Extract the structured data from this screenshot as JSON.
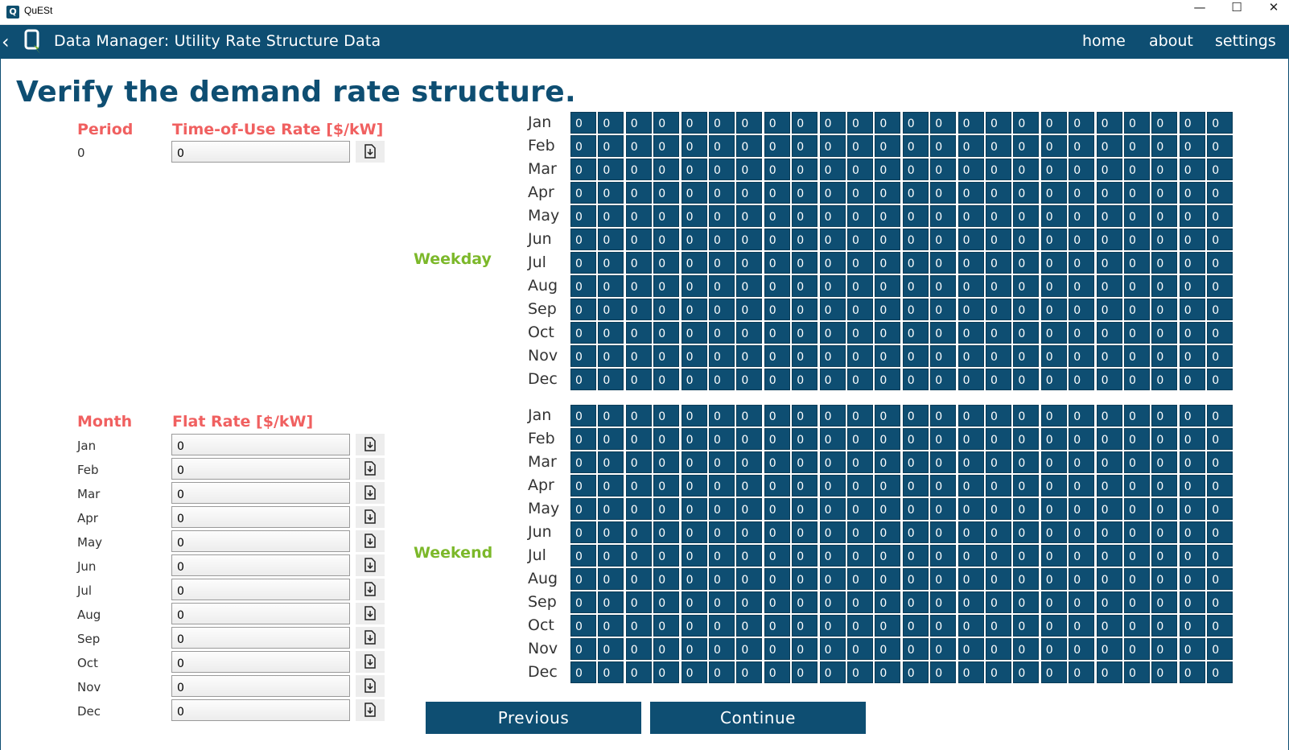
{
  "window": {
    "title": "QuESt",
    "icon_letter": "Q",
    "controls": [
      "minimize-icon",
      "maximize-icon",
      "close-icon"
    ]
  },
  "header": {
    "title": "Data Manager: Utility Rate Structure Data",
    "nav": [
      "home",
      "about",
      "settings"
    ],
    "brand_color": "#0e4e72"
  },
  "heading": "Verify the demand rate structure.",
  "tou": {
    "period_header": "Period",
    "rate_header": "Time-of-Use Rate [$/kW]",
    "rows": [
      {
        "period": "0",
        "value": "0"
      }
    ]
  },
  "flat": {
    "month_header": "Month",
    "rate_header": "Flat Rate [$/kW]",
    "rows": [
      {
        "month": "Jan",
        "value": "0"
      },
      {
        "month": "Feb",
        "value": "0"
      },
      {
        "month": "Mar",
        "value": "0"
      },
      {
        "month": "Apr",
        "value": "0"
      },
      {
        "month": "May",
        "value": "0"
      },
      {
        "month": "Jun",
        "value": "0"
      },
      {
        "month": "Jul",
        "value": "0"
      },
      {
        "month": "Aug",
        "value": "0"
      },
      {
        "month": "Sep",
        "value": "0"
      },
      {
        "month": "Oct",
        "value": "0"
      },
      {
        "month": "Nov",
        "value": "0"
      },
      {
        "month": "Dec",
        "value": "0"
      }
    ]
  },
  "schedules": {
    "months": [
      "Jan",
      "Feb",
      "Mar",
      "Apr",
      "May",
      "Jun",
      "Jul",
      "Aug",
      "Sep",
      "Oct",
      "Nov",
      "Dec"
    ],
    "hours": 24,
    "weekday": {
      "label": "Weekday",
      "fill_value": "0"
    },
    "weekend": {
      "label": "Weekend",
      "fill_value": "0"
    }
  },
  "buttons": {
    "previous": "Previous",
    "continue": "Continue"
  },
  "colors": {
    "header_red": "#f06060",
    "section_green": "#7cb82a",
    "cell_bg": "#0e4e72"
  }
}
